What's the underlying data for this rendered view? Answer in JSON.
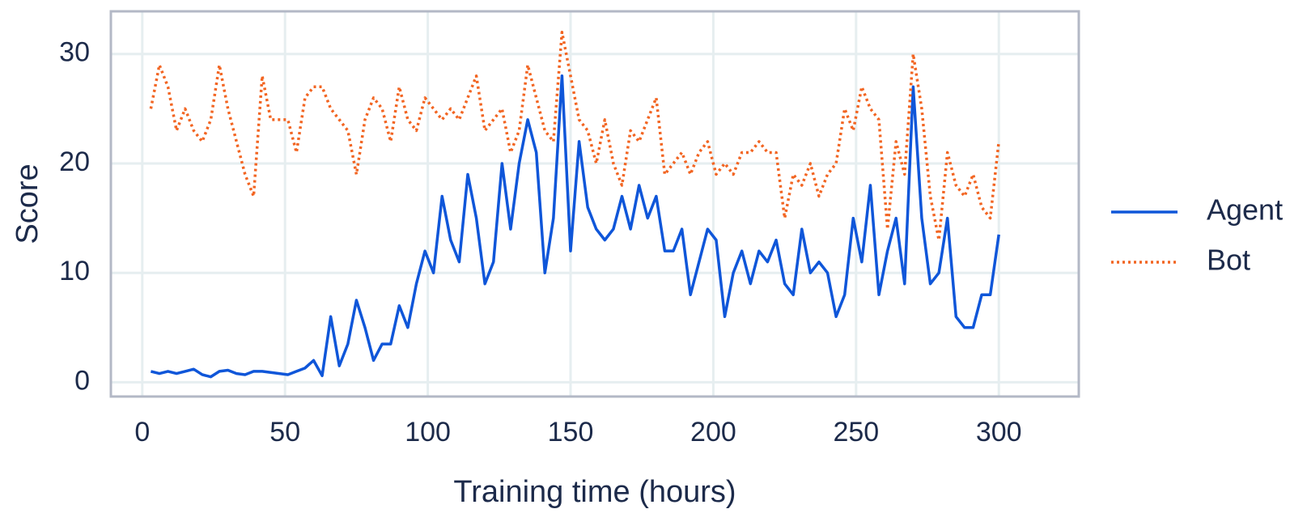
{
  "chart_data": {
    "type": "line",
    "xlabel": "Training time (hours)",
    "ylabel": "Score",
    "x": [
      3,
      6,
      9,
      12,
      15,
      18,
      21,
      24,
      27,
      30,
      33,
      36,
      39,
      42,
      45,
      48,
      51,
      54,
      57,
      60,
      63,
      66,
      69,
      72,
      75,
      78,
      81,
      84,
      87,
      90,
      93,
      96,
      99,
      102,
      105,
      108,
      111,
      114,
      117,
      120,
      123,
      126,
      129,
      132,
      135,
      138,
      141,
      144,
      147,
      150,
      153,
      156,
      159,
      162,
      165,
      168,
      171,
      174,
      177,
      180,
      183,
      186,
      189,
      192,
      195,
      198,
      201,
      204,
      207,
      210,
      213,
      216,
      219,
      222,
      225,
      228,
      231,
      234,
      237,
      240,
      243,
      246,
      249,
      252,
      255,
      258,
      261,
      264,
      267,
      270,
      273,
      276,
      279,
      282,
      285,
      288,
      291,
      294,
      297,
      300
    ],
    "series": [
      {
        "name": "Agent",
        "color": "#0f56d9",
        "dash": "solid",
        "values": [
          1,
          0.8,
          1,
          0.8,
          1,
          1.2,
          0.7,
          0.5,
          1,
          1.1,
          0.8,
          0.7,
          1,
          1,
          0.9,
          0.8,
          0.7,
          1,
          1.3,
          2,
          0.6,
          6,
          1.5,
          3.5,
          7.5,
          5,
          2,
          3.5,
          3.5,
          7,
          5,
          9,
          12,
          10,
          17,
          13,
          11,
          19,
          15,
          9,
          11,
          20,
          14,
          20,
          24,
          21,
          10,
          15,
          28,
          12,
          22,
          16,
          14,
          13,
          14,
          17,
          14,
          18,
          15,
          17,
          12,
          12,
          14,
          8,
          11,
          14,
          13,
          6,
          10,
          12,
          9,
          12,
          11,
          13,
          9,
          8,
          14,
          10,
          11,
          10,
          6,
          8,
          15,
          11,
          18,
          8,
          12,
          15,
          9,
          27,
          15,
          9,
          10,
          15,
          6,
          5,
          5,
          8,
          8,
          13.5
        ]
      },
      {
        "name": "Bot",
        "color": "#f26522",
        "dash": "dotted",
        "values": [
          25,
          29,
          27,
          23,
          25,
          23,
          22,
          24,
          29,
          25,
          22,
          19,
          17,
          28,
          24,
          24,
          24,
          21,
          26,
          27,
          27,
          25,
          24,
          23,
          19,
          24,
          26,
          25,
          22,
          27,
          24,
          23,
          26,
          25,
          24,
          25,
          24,
          26,
          28,
          23,
          24,
          25,
          21,
          23,
          29,
          26,
          23,
          22,
          32,
          28,
          24,
          23,
          20,
          24,
          20,
          18,
          23,
          22,
          24,
          26,
          19,
          20,
          21,
          19,
          21,
          22,
          19,
          20,
          19,
          21,
          21,
          22,
          21,
          21,
          15,
          19,
          18,
          20,
          17,
          19,
          20,
          25,
          23,
          27,
          25,
          24,
          14,
          22,
          19,
          30,
          25,
          17,
          13,
          21,
          18,
          17,
          19,
          16,
          15,
          22
        ]
      }
    ],
    "xlim": [
      -11,
      328
    ],
    "ylim": [
      -1.3,
      33.9
    ],
    "xticks": [
      0,
      50,
      100,
      150,
      200,
      250,
      300
    ],
    "yticks": [
      0,
      10,
      20,
      30
    ],
    "grid": true,
    "legend": "right"
  }
}
